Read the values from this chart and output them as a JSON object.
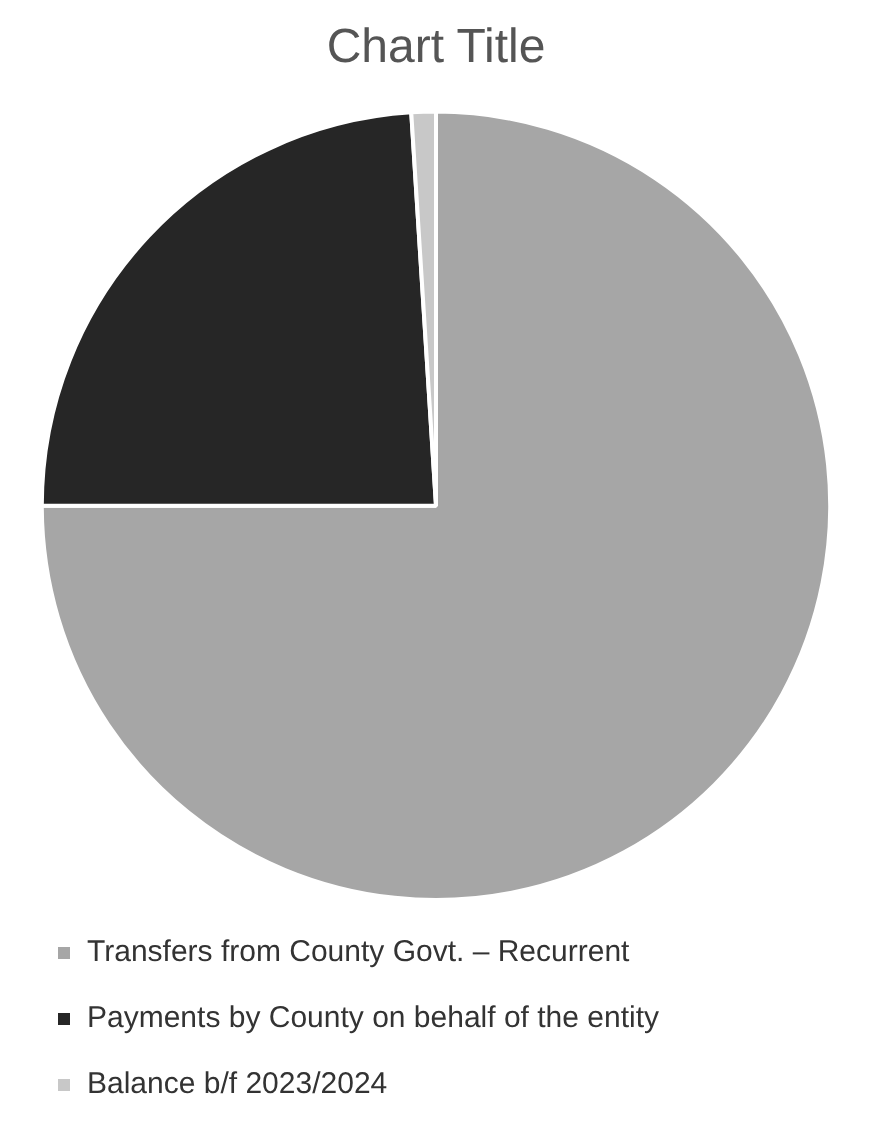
{
  "chart_data": {
    "type": "pie",
    "title": "Chart Title",
    "categories": [
      "Transfers from County Govt. – Recurrent",
      "Payments by County on behalf of the entity",
      "Balance b/f 2023/2024"
    ],
    "values": [
      75,
      24,
      1
    ],
    "colors": [
      "#a6a6a6",
      "#262626",
      "#c8c8c8"
    ],
    "legend": "bottom"
  }
}
